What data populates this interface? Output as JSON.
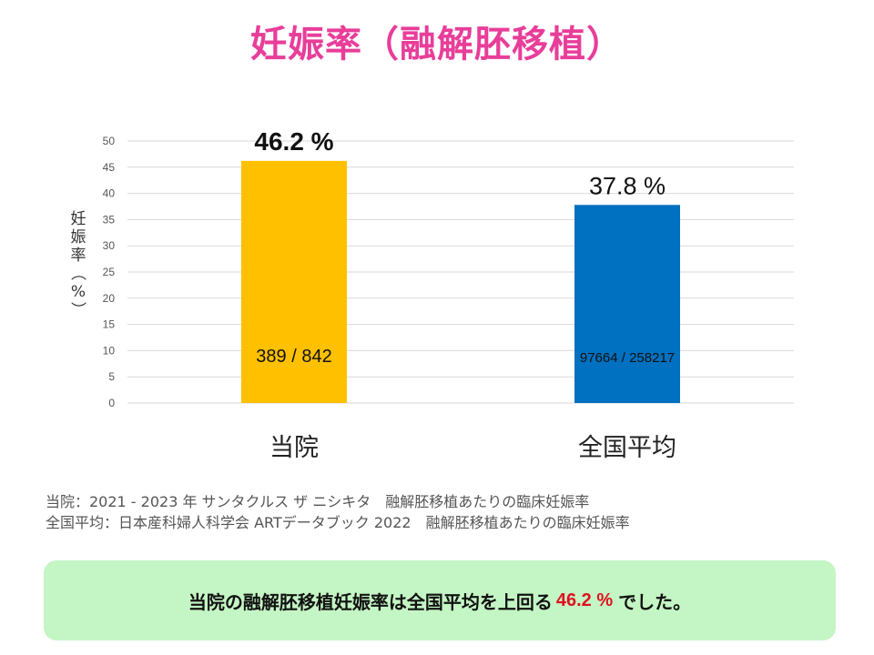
{
  "title": "妊娠率（融解胚移植）",
  "chart_data": {
    "type": "bar",
    "ylabel": "妊娠率（%）",
    "ylim": [
      0,
      50
    ],
    "yticks": [
      0,
      5,
      10,
      15,
      20,
      25,
      30,
      35,
      40,
      45,
      50
    ],
    "grid": true,
    "categories": [
      "当院",
      "全国平均"
    ],
    "values": [
      46.2,
      37.8
    ],
    "value_labels": [
      "46.2 %",
      "37.8 %"
    ],
    "count_labels": [
      "389 / 842",
      "97664 / 258217"
    ],
    "colors": [
      "#ffc000",
      "#0070c0"
    ]
  },
  "notes": [
    "当院：2021 - 2023 年 サンタクルス ザ ニシキタ　融解胚移植あたりの臨床妊娠率",
    "全国平均：日本産科婦人科学会 ARTデータブック 2022　融解胚移植あたりの臨床妊娠率"
  ],
  "summary": {
    "before": "当院の融解胚移植妊娠率は全国平均を上回る",
    "highlight": "46.2 %",
    "after": "でした。"
  }
}
